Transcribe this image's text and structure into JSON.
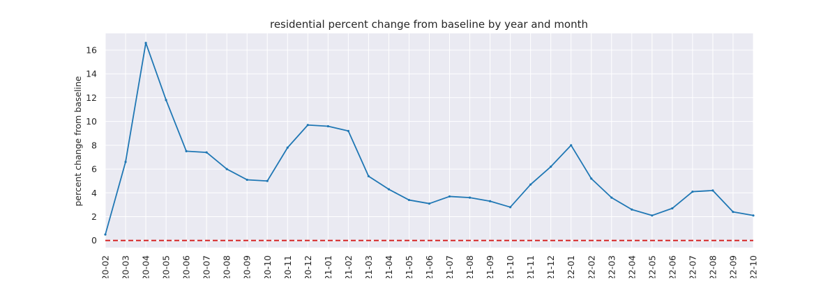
{
  "chart_data": {
    "type": "line",
    "title": "residential percent change from baseline by year and month",
    "xlabel": "",
    "ylabel": "percent change from baseline",
    "categories": [
      "20-02",
      "20-03",
      "20-04",
      "20-05",
      "20-06",
      "20-07",
      "20-08",
      "20-09",
      "20-10",
      "20-11",
      "20-12",
      "21-01",
      "21-02",
      "21-03",
      "21-04",
      "21-05",
      "21-06",
      "21-07",
      "21-08",
      "21-09",
      "21-10",
      "21-11",
      "21-12",
      "22-01",
      "22-02",
      "22-03",
      "22-04",
      "22-05",
      "22-06",
      "22-07",
      "22-08",
      "22-09",
      "22-10"
    ],
    "series": [
      {
        "values": [
          0.5,
          6.6,
          16.6,
          11.8,
          7.5,
          7.4,
          6.0,
          5.1,
          5.0,
          7.8,
          9.7,
          9.6,
          9.2,
          5.4,
          4.3,
          3.4,
          3.1,
          3.7,
          3.6,
          3.3,
          2.8,
          4.7,
          6.2,
          8.0,
          5.2,
          3.6,
          2.6,
          2.1,
          2.7,
          4.1,
          4.2,
          2.4,
          2.1
        ],
        "color": "#1f77b4"
      }
    ],
    "reference_line": {
      "y": 0,
      "color": "#d62728",
      "style": "dashed"
    },
    "ylim": [
      -0.6,
      17.4
    ],
    "yticks": [
      0,
      2,
      4,
      6,
      8,
      10,
      12,
      14,
      16
    ],
    "grid": true,
    "background": "#eaeaf2",
    "grid_color": "#ffffff"
  }
}
